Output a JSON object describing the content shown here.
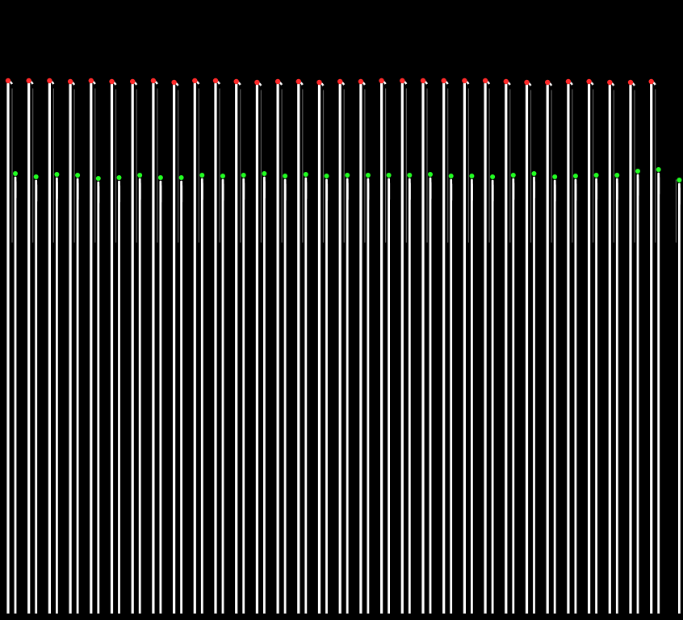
{
  "image": {
    "kind": "line-scan trace image with marked peaks",
    "colors": {
      "background": "#000000",
      "trace": "#ffffff",
      "top_marker": "#ff2a2a",
      "mid_marker": "#22ff22"
    },
    "cycles": [
      {
        "top": 0.868,
        "mid": 0.722
      },
      {
        "top": 0.872,
        "mid": 0.7
      },
      {
        "top": 0.867,
        "mid": 0.716
      },
      {
        "top": 0.859,
        "mid": 0.71
      },
      {
        "top": 0.867,
        "mid": 0.682
      },
      {
        "top": 0.862,
        "mid": 0.693
      },
      {
        "top": 0.863,
        "mid": 0.707
      },
      {
        "top": 0.865,
        "mid": 0.69
      },
      {
        "top": 0.854,
        "mid": 0.693
      },
      {
        "top": 0.864,
        "mid": 0.709
      },
      {
        "top": 0.871,
        "mid": 0.704
      },
      {
        "top": 0.863,
        "mid": 0.707
      },
      {
        "top": 0.85,
        "mid": 0.723
      },
      {
        "top": 0.861,
        "mid": 0.706
      },
      {
        "top": 0.858,
        "mid": 0.713
      },
      {
        "top": 0.852,
        "mid": 0.706
      },
      {
        "top": 0.862,
        "mid": 0.71
      },
      {
        "top": 0.862,
        "mid": 0.707
      },
      {
        "top": 0.865,
        "mid": 0.707
      },
      {
        "top": 0.865,
        "mid": 0.712
      },
      {
        "top": 0.865,
        "mid": 0.715
      },
      {
        "top": 0.865,
        "mid": 0.706
      },
      {
        "top": 0.865,
        "mid": 0.705
      },
      {
        "top": 0.865,
        "mid": 0.7
      },
      {
        "top": 0.858,
        "mid": 0.707
      },
      {
        "top": 0.855,
        "mid": 0.723
      },
      {
        "top": 0.855,
        "mid": 0.7
      },
      {
        "top": 0.858,
        "mid": 0.705
      },
      {
        "top": 0.856,
        "mid": 0.707
      },
      {
        "top": 0.853,
        "mid": 0.71
      },
      {
        "top": 0.85,
        "mid": 0.74
      },
      {
        "top": 0.863,
        "mid": 0.755
      },
      {
        "top": 0.0,
        "mid": 0.673
      }
    ]
  }
}
